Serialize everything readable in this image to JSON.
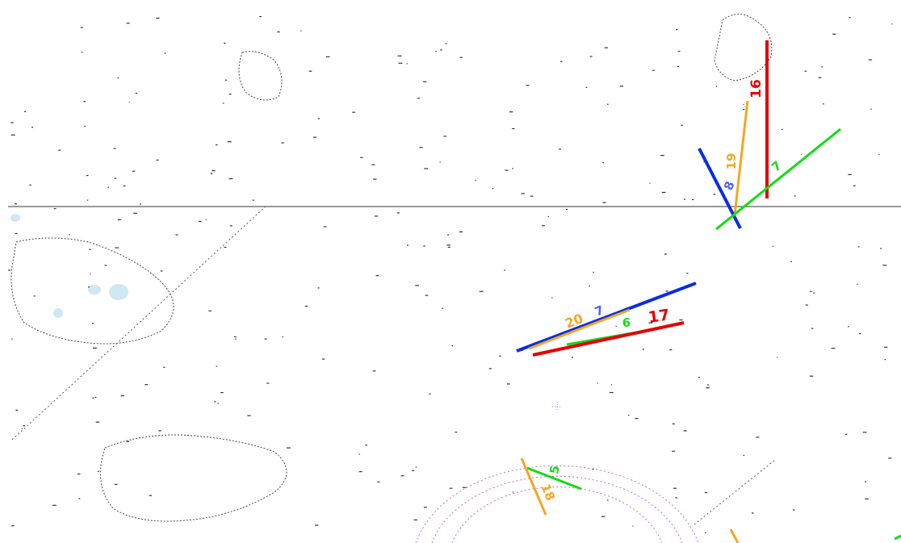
{
  "map": {
    "top_header": "",
    "chart_place_label": "",
    "colors": {
      "red": "#e60000",
      "orange": "#f5a623",
      "blue": "#0a2ee0",
      "green": "#11dd11",
      "compass_rose": "#c76ac7",
      "shallow": "#cfe8f3"
    }
  },
  "bearings": {
    "upper": {
      "red_16": "16",
      "orange_19": "19",
      "blue_8": "8",
      "green_7": "7"
    },
    "middle": {
      "orange_20": "20",
      "blue_7": "7",
      "green_6": "6",
      "red_17": "17"
    },
    "lower": {
      "green_5": "5",
      "orange_18": "18"
    }
  }
}
